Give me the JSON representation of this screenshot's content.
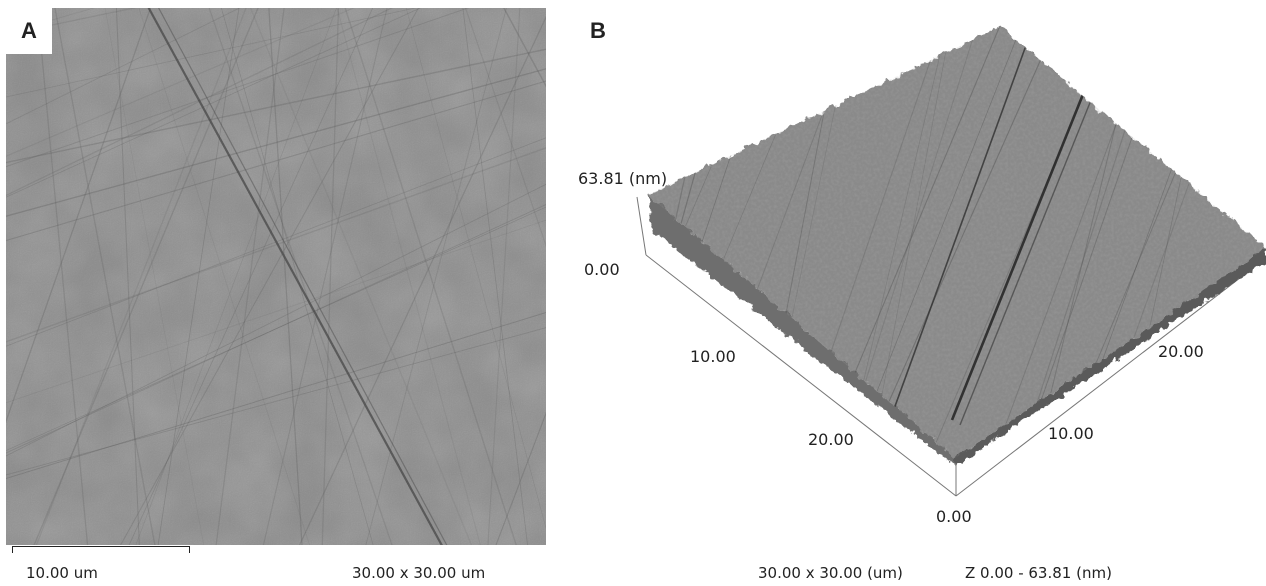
{
  "panel_a": {
    "letter": "A",
    "scale_bar_label": "10.00 um",
    "scan_size": "30.00 x 30.00 um"
  },
  "panel_b": {
    "letter": "B",
    "z_axis_max": "63.81 (nm)",
    "z_axis_min": "0.00",
    "left_axis_ticks": [
      "10.00",
      "20.00"
    ],
    "right_axis_ticks": [
      "20.00",
      "10.00"
    ],
    "origin_label": "0.00",
    "scan_size": "30.00 x 30.00 (um)",
    "z_range": "Z 0.00 - 63.81 (nm)"
  },
  "colors": {
    "surface_gray": "#8a8a8a",
    "scratch_dark": "#2a2a2a",
    "background": "#ffffff"
  }
}
